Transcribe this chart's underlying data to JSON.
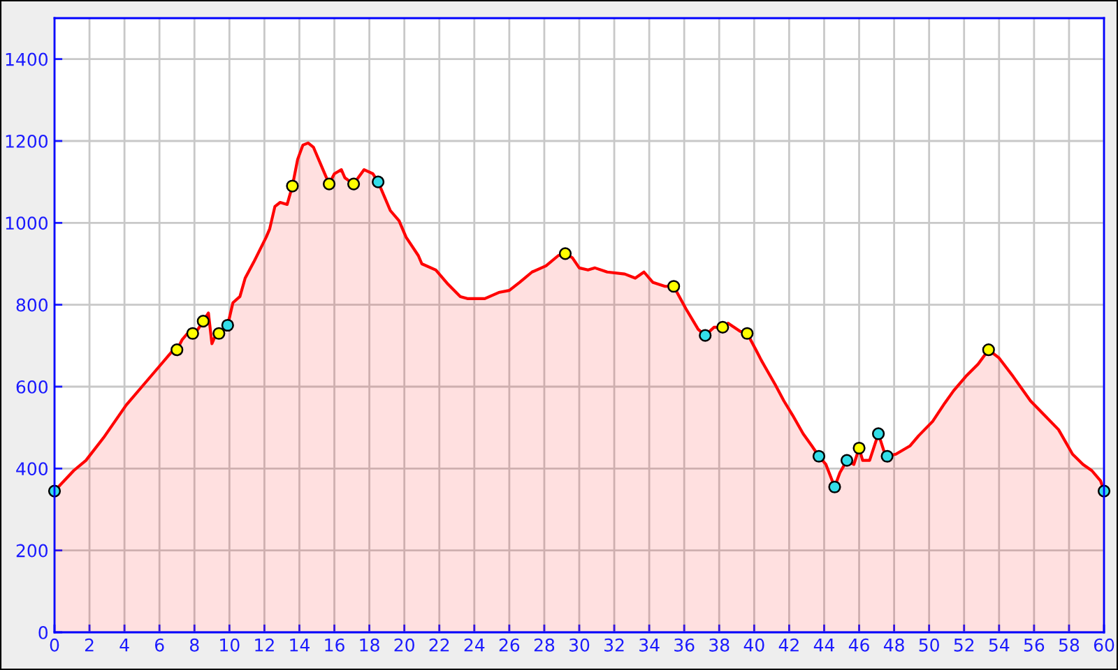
{
  "chart_data": {
    "type": "area",
    "xlim": [
      0,
      60
    ],
    "xticks": [
      0,
      2,
      4,
      6,
      8,
      10,
      12,
      14,
      16,
      18,
      20,
      22,
      24,
      26,
      28,
      30,
      32,
      34,
      36,
      38,
      40,
      42,
      44,
      46,
      48,
      50,
      52,
      54,
      56,
      58,
      60
    ],
    "ylim": [
      0,
      1500
    ],
    "yticks": [
      0,
      200,
      400,
      600,
      800,
      1000,
      1200,
      1400
    ],
    "grid": true,
    "series": [
      {
        "color": "#ff0000",
        "x": [
          0,
          1.1,
          1.8,
          2.8,
          4.1,
          5.0,
          6.1,
          6.8,
          7.0,
          7.3,
          7.6,
          7.9,
          8.2,
          8.5,
          8.8,
          9.0,
          9.2,
          9.4,
          9.9,
          10.2,
          10.6,
          10.9,
          11.4,
          12.1,
          12.3,
          12.6,
          12.9,
          13.3,
          13.6,
          13.9,
          14.2,
          14.5,
          14.8,
          15.3,
          15.7,
          16.0,
          16.4,
          16.6,
          17.1,
          17.7,
          18.2,
          18.5,
          19.2,
          19.7,
          20.1,
          20.8,
          21.0,
          21.8,
          22.5,
          23.2,
          23.6,
          24.6,
          25.4,
          26.0,
          26.6,
          27.3,
          28.1,
          28.8,
          29.2,
          29.6,
          30.0,
          30.5,
          30.9,
          31.6,
          32.6,
          33.2,
          33.7,
          34.2,
          34.9,
          35.4,
          36.1,
          36.8,
          37.2,
          37.7,
          38.2,
          38.5,
          39.2,
          39.6,
          40.1,
          40.4,
          40.6,
          41.2,
          41.7,
          42.2,
          42.8,
          43.3,
          43.7,
          44.1,
          44.6,
          44.9,
          45.3,
          45.7,
          46.0,
          46.2,
          46.6,
          47.1,
          47.4,
          47.6,
          48.1,
          48.9,
          49.4,
          50.2,
          50.9,
          51.4,
          52.1,
          52.8,
          53.4,
          54.0,
          54.8,
          55.8,
          56.6,
          57.4,
          58.2,
          58.8,
          59.3,
          59.8,
          60
        ],
        "values": [
          345,
          395,
          420,
          475,
          555,
          600,
          655,
          690,
          690,
          715,
          730,
          730,
          740,
          760,
          780,
          705,
          725,
          730,
          750,
          805,
          820,
          865,
          905,
          965,
          985,
          1040,
          1050,
          1045,
          1090,
          1155,
          1190,
          1195,
          1185,
          1135,
          1095,
          1120,
          1130,
          1110,
          1095,
          1130,
          1120,
          1100,
          1030,
          1005,
          965,
          920,
          900,
          885,
          850,
          820,
          815,
          815,
          830,
          835,
          855,
          880,
          895,
          920,
          925,
          915,
          890,
          885,
          890,
          880,
          875,
          865,
          880,
          855,
          845,
          845,
          790,
          740,
          725,
          745,
          745,
          755,
          735,
          730,
          690,
          665,
          650,
          605,
          565,
          530,
          485,
          455,
          430,
          410,
          355,
          390,
          420,
          410,
          450,
          420,
          420,
          485,
          445,
          430,
          435,
          455,
          480,
          515,
          560,
          590,
          625,
          655,
          690,
          670,
          625,
          565,
          530,
          495,
          435,
          410,
          395,
          370,
          345
        ]
      },
      {
        "type": "scatter",
        "color": "#ffff00",
        "marker": "circle",
        "x": [
          7.0,
          7.9,
          8.5,
          9.4,
          13.6,
          15.7,
          17.1,
          29.2,
          35.4,
          38.2,
          39.6,
          46.0,
          53.4
        ],
        "values": [
          690,
          730,
          760,
          730,
          1090,
          1095,
          1095,
          925,
          845,
          745,
          730,
          450,
          690
        ]
      },
      {
        "type": "scatter",
        "color": "#33dde8",
        "marker": "circle",
        "x": [
          0,
          9.9,
          18.5,
          37.2,
          43.7,
          44.6,
          45.3,
          47.1,
          47.6,
          60
        ],
        "values": [
          345,
          750,
          1100,
          725,
          430,
          355,
          420,
          485,
          430,
          345
        ]
      }
    ]
  }
}
